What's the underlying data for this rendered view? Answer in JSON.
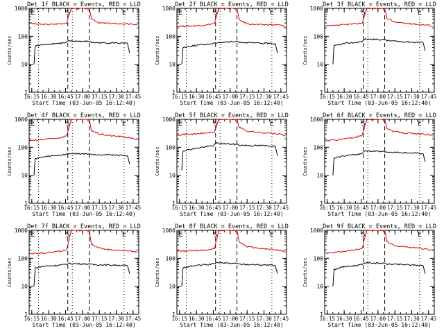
{
  "chart_data": [
    {
      "type": "line",
      "title": "Det 1f BLACK = Events, RED = LLD",
      "xlabel": "Start Time (03-Jun-05 16:12:40)",
      "ylabel": "Counts/sec",
      "x_ticks": [
        "16:15",
        "16:30",
        "16:45",
        "17:00",
        "17:15",
        "17:30",
        "17:45"
      ],
      "y_ticks": [
        "1",
        "10",
        "100",
        "1000"
      ],
      "yscale": "log",
      "ylim": [
        1,
        1000
      ],
      "markers": [
        "E",
        "S",
        "E"
      ],
      "series": [
        {
          "color": "#dd0000",
          "x": [
            "16:13",
            "16:20",
            "16:30",
            "16:40",
            "16:46",
            "16:50",
            "17:06",
            "17:08",
            "17:15",
            "17:25",
            "17:35",
            "17:45",
            "17:49"
          ],
          "values": [
            300,
            270,
            265,
            280,
            300,
            1000,
            1000,
            430,
            300,
            290,
            280,
            270,
            250
          ]
        },
        {
          "color": "#000000",
          "x": [
            "16:17",
            "16:18",
            "16:25",
            "16:35",
            "16:45",
            "16:48",
            "17:07",
            "17:08",
            "17:20",
            "17:30",
            "17:40",
            "17:42"
          ],
          "values": [
            10,
            45,
            50,
            55,
            58,
            68,
            65,
            60,
            58,
            58,
            55,
            25
          ]
        }
      ]
    },
    {
      "type": "line",
      "title": "Det 2f BLACK = Events, RED = LLD",
      "xlabel": "Start Time (03-Jun-05 16:12:40)",
      "ylabel": "Counts/sec",
      "x_ticks": [
        "16:15",
        "16:30",
        "16:45",
        "17:00",
        "17:15",
        "17:30",
        "17:45"
      ],
      "y_ticks": [
        "1",
        "10",
        "100",
        "1000"
      ],
      "yscale": "log",
      "ylim": [
        1,
        1000
      ],
      "markers": [
        "E",
        "S",
        "E"
      ],
      "series": [
        {
          "color": "#dd0000",
          "x": [
            "16:13",
            "16:20",
            "16:30",
            "16:40",
            "16:46",
            "16:50",
            "17:06",
            "17:08",
            "17:15",
            "17:25",
            "17:35",
            "17:45",
            "17:49"
          ],
          "values": [
            230,
            230,
            240,
            260,
            290,
            1000,
            1000,
            380,
            280,
            260,
            260,
            250,
            220
          ]
        },
        {
          "color": "#000000",
          "x": [
            "16:17",
            "16:18",
            "16:25",
            "16:35",
            "16:45",
            "16:48",
            "17:07",
            "17:08",
            "17:20",
            "17:30",
            "17:40",
            "17:42"
          ],
          "values": [
            10,
            40,
            45,
            50,
            55,
            60,
            65,
            62,
            58,
            56,
            55,
            25
          ]
        }
      ]
    },
    {
      "type": "line",
      "title": "Det 3f BLACK = Events, RED = LLD",
      "xlabel": "Start Time (03-Jun-05 16:12:40)",
      "ylabel": "Counts/sec",
      "x_ticks": [
        "16:15",
        "16:30",
        "16:45",
        "17:00",
        "17:15",
        "17:30",
        "17:45"
      ],
      "y_ticks": [
        "1",
        "10",
        "100",
        "1000"
      ],
      "yscale": "log",
      "ylim": [
        1,
        1000
      ],
      "markers": [
        "S",
        "E"
      ],
      "series": [
        {
          "color": "#dd0000",
          "x": [
            "16:13",
            "16:20",
            "16:30",
            "16:40",
            "16:46",
            "16:50",
            "17:06",
            "17:08",
            "17:15",
            "17:25",
            "17:35",
            "17:45",
            "17:49"
          ],
          "values": [
            230,
            240,
            260,
            280,
            300,
            1000,
            1000,
            450,
            320,
            290,
            270,
            250,
            230
          ]
        },
        {
          "color": "#000000",
          "x": [
            "16:20",
            "16:21",
            "16:30",
            "16:40",
            "16:46",
            "16:48",
            "17:07",
            "17:08",
            "17:20",
            "17:30",
            "17:40",
            "17:42"
          ],
          "values": [
            10,
            45,
            55,
            60,
            65,
            80,
            75,
            70,
            65,
            62,
            60,
            30
          ]
        }
      ]
    },
    {
      "type": "line",
      "title": "Det 4f BLACK = Events, RED = LLD",
      "xlabel": "Start Time (03-Jun-05 16:12:40)",
      "ylabel": "Counts/sec",
      "x_ticks": [
        "16:15",
        "16:30",
        "16:45",
        "17:00",
        "17:15",
        "17:30",
        "17:45"
      ],
      "y_ticks": [
        "1",
        "10",
        "100",
        "1000"
      ],
      "yscale": "log",
      "ylim": [
        1,
        1000
      ],
      "markers": [
        "E",
        "S",
        "E"
      ],
      "series": [
        {
          "color": "#dd0000",
          "x": [
            "16:13",
            "16:20",
            "16:30",
            "16:40",
            "16:46",
            "16:50",
            "17:06",
            "17:08",
            "17:15",
            "17:25",
            "17:35",
            "17:45",
            "17:49"
          ],
          "values": [
            170,
            180,
            200,
            220,
            260,
            1000,
            1000,
            400,
            300,
            260,
            240,
            210,
            190
          ]
        },
        {
          "color": "#000000",
          "x": [
            "16:17",
            "16:18",
            "16:25",
            "16:35",
            "16:45",
            "16:48",
            "17:07",
            "17:08",
            "17:20",
            "17:30",
            "17:40",
            "17:42"
          ],
          "values": [
            10,
            40,
            45,
            50,
            55,
            60,
            58,
            55,
            55,
            53,
            50,
            25
          ]
        }
      ]
    },
    {
      "type": "line",
      "title": "Det 5f BLACK = Events, RED = LLD",
      "xlabel": "Start Time (03-Jun-05 16:12:40)",
      "ylabel": "Counts/sec",
      "x_ticks": [
        "16:15",
        "16:30",
        "16:45",
        "17:00",
        "17:15",
        "17:30",
        "17:45"
      ],
      "y_ticks": [
        "1",
        "10",
        "100",
        "1000"
      ],
      "yscale": "log",
      "ylim": [
        1,
        1000
      ],
      "markers": [
        "E",
        "S",
        "E"
      ],
      "series": [
        {
          "color": "#dd0000",
          "x": [
            "16:13",
            "16:20",
            "16:30",
            "16:40",
            "16:46",
            "16:50",
            "17:06",
            "17:08",
            "17:15",
            "17:25",
            "17:35",
            "17:45",
            "17:49"
          ],
          "values": [
            280,
            290,
            300,
            330,
            350,
            1000,
            1000,
            520,
            380,
            340,
            320,
            290,
            260
          ]
        },
        {
          "color": "#000000",
          "x": [
            "16:17",
            "16:18",
            "16:25",
            "16:35",
            "16:45",
            "16:48",
            "17:07",
            "17:08",
            "17:20",
            "17:30",
            "17:40",
            "17:42"
          ],
          "values": [
            15,
            75,
            85,
            100,
            115,
            140,
            125,
            120,
            115,
            115,
            110,
            50
          ]
        }
      ]
    },
    {
      "type": "line",
      "title": "Det 6f BLACK = Events, RED = LLD",
      "xlabel": "Start Time (03-Jun-05 16:12:40)",
      "ylabel": "Counts/sec",
      "x_ticks": [
        "16:15",
        "16:30",
        "16:45",
        "17:00",
        "17:15",
        "17:30",
        "17:45"
      ],
      "y_ticks": [
        "1",
        "10",
        "100",
        "1000"
      ],
      "yscale": "log",
      "ylim": [
        1,
        1000
      ],
      "markers": [
        "S",
        "E"
      ],
      "series": [
        {
          "color": "#dd0000",
          "x": [
            "16:13",
            "16:20",
            "16:30",
            "16:40",
            "16:46",
            "16:50",
            "17:06",
            "17:08",
            "17:15",
            "17:25",
            "17:35",
            "17:45",
            "17:49"
          ],
          "values": [
            170,
            180,
            200,
            230,
            260,
            1000,
            1000,
            480,
            360,
            320,
            300,
            280,
            250
          ]
        },
        {
          "color": "#000000",
          "x": [
            "16:20",
            "16:21",
            "16:30",
            "16:40",
            "16:46",
            "16:48",
            "17:07",
            "17:08",
            "17:20",
            "17:30",
            "17:40",
            "17:42"
          ],
          "values": [
            10,
            40,
            50,
            55,
            60,
            75,
            70,
            68,
            65,
            62,
            60,
            30
          ]
        }
      ]
    },
    {
      "type": "line",
      "title": "Det 7f BLACK = Events, RED = LLD",
      "xlabel": "Start Time (03-Jun-05 16:12:40)",
      "ylabel": "Counts/sec",
      "x_ticks": [
        "16:15",
        "16:30",
        "16:45",
        "17:00",
        "17:15",
        "17:30",
        "17:45"
      ],
      "y_ticks": [
        "1",
        "10",
        "100",
        "1000"
      ],
      "yscale": "log",
      "ylim": [
        1,
        1000
      ],
      "markers": [
        "E",
        "S",
        "E"
      ],
      "series": [
        {
          "color": "#dd0000",
          "x": [
            "16:13",
            "16:20",
            "16:30",
            "16:40",
            "16:46",
            "16:50",
            "17:06",
            "17:08",
            "17:15",
            "17:25",
            "17:35",
            "17:45",
            "17:49"
          ],
          "values": [
            150,
            150,
            160,
            180,
            200,
            1000,
            1000,
            320,
            230,
            200,
            190,
            180,
            160
          ]
        },
        {
          "color": "#000000",
          "x": [
            "16:17",
            "16:18",
            "16:25",
            "16:35",
            "16:45",
            "16:48",
            "17:07",
            "17:08",
            "17:20",
            "17:30",
            "17:40",
            "17:42"
          ],
          "values": [
            10,
            45,
            52,
            55,
            60,
            65,
            62,
            60,
            58,
            57,
            55,
            28
          ]
        }
      ]
    },
    {
      "type": "line",
      "title": "Det 8f BLACK = Events, RED = LLD",
      "xlabel": "Start Time (03-Jun-05 16:12:40)",
      "ylabel": "Counts/sec",
      "x_ticks": [
        "16:15",
        "16:30",
        "16:45",
        "17:00",
        "17:15",
        "17:30",
        "17:45"
      ],
      "y_ticks": [
        "1",
        "10",
        "100",
        "1000"
      ],
      "yscale": "log",
      "ylim": [
        1,
        1000
      ],
      "markers": [
        "E",
        "S",
        "E"
      ],
      "series": [
        {
          "color": "#dd0000",
          "x": [
            "16:13",
            "16:20",
            "16:30",
            "16:40",
            "16:46",
            "16:50",
            "17:06",
            "17:08",
            "17:15",
            "17:25",
            "17:35",
            "17:45",
            "17:49"
          ],
          "values": [
            180,
            180,
            190,
            200,
            230,
            1000,
            1000,
            400,
            260,
            230,
            210,
            190,
            170
          ]
        },
        {
          "color": "#000000",
          "x": [
            "16:17",
            "16:18",
            "16:25",
            "16:35",
            "16:45",
            "16:48",
            "17:07",
            "17:08",
            "17:20",
            "17:30",
            "17:40",
            "17:42"
          ],
          "values": [
            10,
            45,
            52,
            58,
            62,
            70,
            65,
            62,
            60,
            58,
            55,
            28
          ]
        }
      ]
    },
    {
      "type": "line",
      "title": "Det 9f BLACK = Events, RED = LLD",
      "xlabel": "Start Time (03-Jun-05 16:12:40)",
      "ylabel": "Counts/sec",
      "x_ticks": [
        "16:15",
        "16:30",
        "16:45",
        "17:00",
        "17:15",
        "17:30",
        "17:45"
      ],
      "y_ticks": [
        "1",
        "10",
        "100",
        "1000"
      ],
      "yscale": "log",
      "ylim": [
        1,
        1000
      ],
      "markers": [
        "S",
        "E"
      ],
      "series": [
        {
          "color": "#dd0000",
          "x": [
            "16:13",
            "16:20",
            "16:30",
            "16:40",
            "16:46",
            "16:50",
            "17:06",
            "17:08",
            "17:15",
            "17:25",
            "17:35",
            "17:45",
            "17:49"
          ],
          "values": [
            150,
            160,
            180,
            200,
            230,
            1000,
            1000,
            400,
            280,
            250,
            230,
            210,
            190
          ]
        },
        {
          "color": "#000000",
          "x": [
            "16:20",
            "16:21",
            "16:30",
            "16:40",
            "16:46",
            "16:48",
            "17:07",
            "17:08",
            "17:20",
            "17:30",
            "17:40",
            "17:42"
          ],
          "values": [
            10,
            40,
            50,
            55,
            60,
            70,
            65,
            62,
            60,
            58,
            55,
            28
          ]
        }
      ]
    }
  ]
}
